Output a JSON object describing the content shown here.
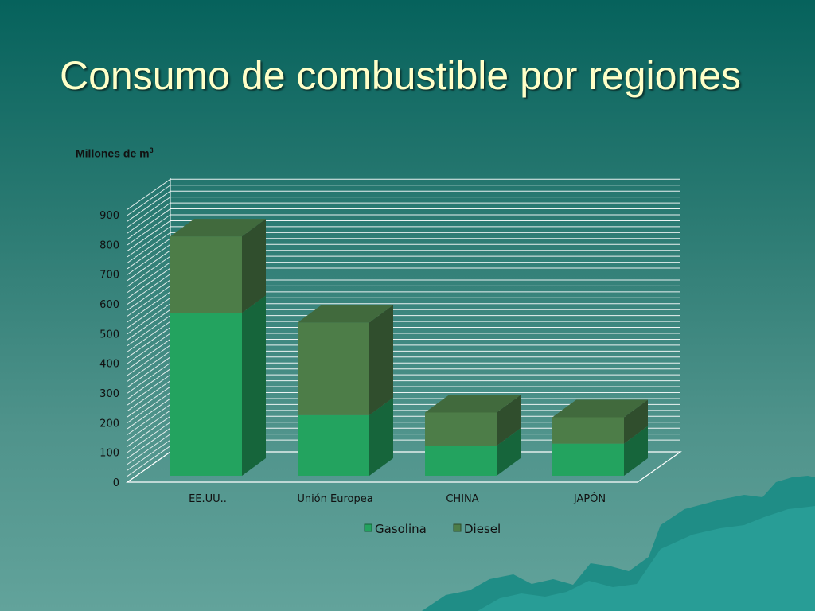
{
  "slide": {
    "title": "Consumo de combustible por regiones",
    "unit_label": "Millones de m",
    "unit_superscript": "3"
  },
  "chart_data": {
    "type": "bar",
    "stacked": true,
    "style": "3d",
    "ylabel": "Millones de m³",
    "ylim": [
      0,
      900
    ],
    "yticks": [
      0,
      100,
      200,
      300,
      400,
      500,
      600,
      700,
      800,
      900
    ],
    "categories": [
      "EE.UU..",
      "Unión Europea",
      "CHINA",
      "JAPÓN"
    ],
    "series": [
      {
        "name": "Gasolina",
        "values": [
          548,
          204,
          101,
          108
        ],
        "color": "#23a35f"
      },
      {
        "name": "Diesel",
        "values": [
          258,
          312,
          112,
          89
        ],
        "color": "#4d7d48"
      }
    ],
    "legend_position": "bottom",
    "grid": true
  }
}
